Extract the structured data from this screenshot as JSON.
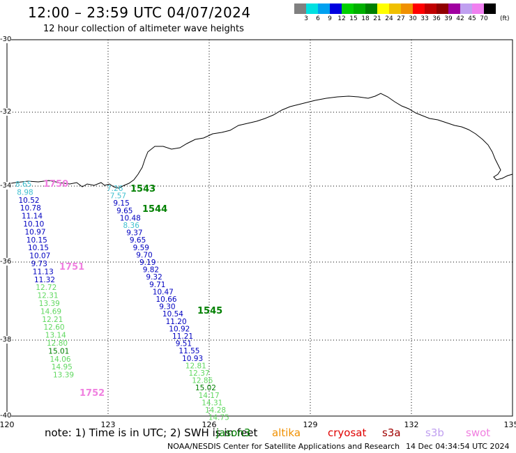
{
  "header": {
    "title": "12:00 – 23:59 UTC 04/07/2024",
    "subtitle": "12 hour collection of altimeter wave heights"
  },
  "legend": {
    "colors": [
      "#808080",
      "#00e0e0",
      "#00a0f0",
      "#0000e0",
      "#00d000",
      "#00b000",
      "#008000",
      "#ffff00",
      "#f0c000",
      "#f09000",
      "#ff0000",
      "#c00000",
      "#900000",
      "#a000a0",
      "#c0a0f0",
      "#f080f0",
      "#000000"
    ],
    "labels": [
      "3",
      "6",
      "9",
      "12",
      "15",
      "18",
      "21",
      "24",
      "27",
      "30",
      "33",
      "36",
      "39",
      "42",
      "45",
      "70"
    ],
    "unit": "(ft)"
  },
  "axes": {
    "lat_labels": [
      "-30",
      "-32",
      "-34",
      "-36",
      "-38",
      "-40"
    ],
    "lon_labels": [
      "120",
      "123",
      "126",
      "129",
      "132",
      "135"
    ]
  },
  "tracks": [
    {
      "track_id": "jason3-1751-1752",
      "points": [
        {
          "v": "8.65",
          "c": "#40c0d0"
        },
        {
          "v": "8.98",
          "c": "#40c0d0"
        },
        {
          "v": "10.52",
          "c": "#0000c0"
        },
        {
          "v": "10.78",
          "c": "#0000c0"
        },
        {
          "v": "11.14",
          "c": "#0000c0"
        },
        {
          "v": "10.10",
          "c": "#0000c0"
        },
        {
          "v": "10.97",
          "c": "#0000c0"
        },
        {
          "v": "10.15",
          "c": "#0000c0"
        },
        {
          "v": "10.15",
          "c": "#0000c0"
        },
        {
          "v": "10.07",
          "c": "#0000c0"
        },
        {
          "v": "9.73",
          "c": "#0000c0"
        },
        {
          "v": "11.13",
          "c": "#0000c0"
        },
        {
          "v": "11.32",
          "c": "#0000c0"
        },
        {
          "v": "12.72",
          "c": "#60d860"
        },
        {
          "v": "12.31",
          "c": "#60d860"
        },
        {
          "v": "13.39",
          "c": "#60d860"
        },
        {
          "v": "14.69",
          "c": "#60d860"
        },
        {
          "v": "12.21",
          "c": "#60d860"
        },
        {
          "v": "12.60",
          "c": "#60d860"
        },
        {
          "v": "13.14",
          "c": "#60d860"
        },
        {
          "v": "12.80",
          "c": "#60d860"
        },
        {
          "v": "15.01",
          "c": "#008000"
        },
        {
          "v": "14.06",
          "c": "#60d860"
        },
        {
          "v": "14.95",
          "c": "#60d860"
        },
        {
          "v": "13.39",
          "c": "#60d860"
        }
      ],
      "time_labels": [
        {
          "text": "1750",
          "color": "#f080e0"
        },
        {
          "text": "1751",
          "color": "#f080e0"
        },
        {
          "text": "1752",
          "color": "#f080e0"
        }
      ]
    },
    {
      "track_id": "jason3-1543-1545",
      "points": [
        {
          "v": "7.26",
          "c": "#40c0d0"
        },
        {
          "v": "7.57",
          "c": "#40c0d0"
        },
        {
          "v": "9.15",
          "c": "#0000c0"
        },
        {
          "v": "9.65",
          "c": "#0000c0"
        },
        {
          "v": "10.48",
          "c": "#0000c0"
        },
        {
          "v": "8.36",
          "c": "#40c0d0"
        },
        {
          "v": "9.37",
          "c": "#0000c0"
        },
        {
          "v": "9.65",
          "c": "#0000c0"
        },
        {
          "v": "9.59",
          "c": "#0000c0"
        },
        {
          "v": "9.70",
          "c": "#0000c0"
        },
        {
          "v": "9.19",
          "c": "#0000c0"
        },
        {
          "v": "9.82",
          "c": "#0000c0"
        },
        {
          "v": "9.32",
          "c": "#0000c0"
        },
        {
          "v": "9.71",
          "c": "#0000c0"
        },
        {
          "v": "10.47",
          "c": "#0000c0"
        },
        {
          "v": "10.66",
          "c": "#0000c0"
        },
        {
          "v": "9.30",
          "c": "#0000c0"
        },
        {
          "v": "10.54",
          "c": "#0000c0"
        },
        {
          "v": "11.20",
          "c": "#0000c0"
        },
        {
          "v": "10.92",
          "c": "#0000c0"
        },
        {
          "v": "11.21",
          "c": "#0000c0"
        },
        {
          "v": "9.51",
          "c": "#0000c0"
        },
        {
          "v": "11.55",
          "c": "#0000c0"
        },
        {
          "v": "10.93",
          "c": "#0000c0"
        },
        {
          "v": "12.81",
          "c": "#60d860"
        },
        {
          "v": "12.37",
          "c": "#60d860"
        },
        {
          "v": "12.86",
          "c": "#60d860"
        },
        {
          "v": "15.02",
          "c": "#008000"
        },
        {
          "v": "14.17",
          "c": "#60d860"
        },
        {
          "v": "14.31",
          "c": "#60d860"
        },
        {
          "v": "14.28",
          "c": "#60d860"
        },
        {
          "v": "14.75",
          "c": "#60d860"
        }
      ],
      "time_labels": [
        {
          "text": "1543",
          "color": "#008000"
        },
        {
          "text": "1544",
          "color": "#008000"
        },
        {
          "text": "1545",
          "color": "#008000"
        }
      ]
    }
  ],
  "footer": {
    "note": "note:  1) Time is in UTC; 2) SWH is in feet",
    "satellites": [
      {
        "name": "jason3",
        "color": "#008000"
      },
      {
        "name": "altika",
        "color": "#f09000"
      },
      {
        "name": "cryosat",
        "color": "#e00000"
      },
      {
        "name": "s3a",
        "color": "#a00000"
      },
      {
        "name": "s3b",
        "color": "#c0a0f0"
      },
      {
        "name": "swot",
        "color": "#f080e0"
      }
    ],
    "credit": "NOAA/NESDIS Center for Satellite Applications and Research",
    "timestamp": "14 Dec 04:34:54 UTC 2024"
  }
}
